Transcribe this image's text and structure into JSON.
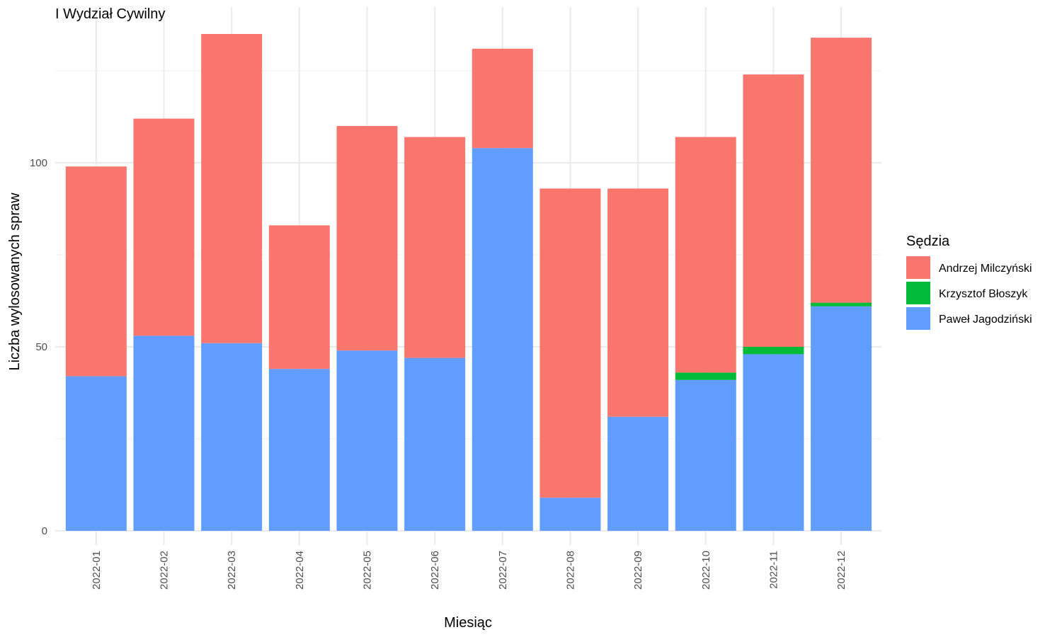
{
  "chart_data": {
    "type": "bar",
    "stacked": true,
    "title": "I Wydział Cywilny",
    "xlabel": "Miesiąc",
    "ylabel": "Liczba wylosowanych spraw",
    "ylim": [
      0,
      140
    ],
    "yticks": [
      0,
      50,
      100
    ],
    "grid": true,
    "legend_title": "Sędzia",
    "legend_position": "right",
    "categories": [
      "2022-01",
      "2022-02",
      "2022-03",
      "2022-04",
      "2022-05",
      "2022-06",
      "2022-07",
      "2022-08",
      "2022-09",
      "2022-10",
      "2022-11",
      "2022-12"
    ],
    "series": [
      {
        "name": "Paweł Jagodziński",
        "color": "#619CFF",
        "values": [
          42,
          53,
          51,
          44,
          49,
          47,
          104,
          9,
          31,
          41,
          48,
          61
        ]
      },
      {
        "name": "Krzysztof Błoszyk",
        "color": "#00BA38",
        "values": [
          0,
          0,
          0,
          0,
          0,
          0,
          0,
          0,
          0,
          2,
          2,
          1
        ]
      },
      {
        "name": "Andrzej Milczyński",
        "color": "#F8766D",
        "values": [
          57,
          59,
          84,
          39,
          61,
          60,
          27,
          84,
          62,
          64,
          74,
          72
        ]
      }
    ],
    "legend_order": [
      "Andrzej Milczyński",
      "Krzysztof Błoszyk",
      "Paweł Jagodziński"
    ]
  }
}
